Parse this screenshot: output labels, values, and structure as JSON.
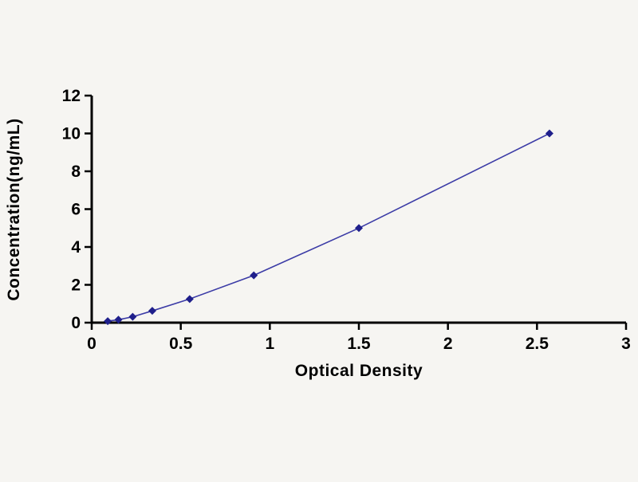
{
  "chart_data": {
    "type": "line",
    "title": "",
    "xlabel": "Optical Density",
    "ylabel": "Concentration(ng/mL)",
    "xlim": [
      0,
      3
    ],
    "ylim": [
      0,
      12
    ],
    "x_ticks": [
      0,
      0.5,
      1,
      1.5,
      2,
      2.5,
      3
    ],
    "x_tick_labels": [
      "0",
      "0.5",
      "1",
      "1.5",
      "2",
      "2.5",
      "3"
    ],
    "y_ticks": [
      0,
      2,
      4,
      6,
      8,
      10,
      12
    ],
    "y_tick_labels": [
      "0",
      "2",
      "4",
      "6",
      "8",
      "10",
      "12"
    ],
    "grid": false,
    "legend": false,
    "series": [
      {
        "name": "standard-curve",
        "marker": "diamond",
        "line_color": "#3b3ba6",
        "marker_color": "#1f1f8b",
        "x": [
          0.09,
          0.15,
          0.23,
          0.34,
          0.55,
          0.91,
          1.5,
          2.57
        ],
        "y": [
          0.078,
          0.156,
          0.313,
          0.625,
          1.25,
          2.5,
          5,
          10
        ]
      }
    ]
  },
  "style": {
    "background": "#f6f5f2",
    "axis_color": "#000000"
  }
}
